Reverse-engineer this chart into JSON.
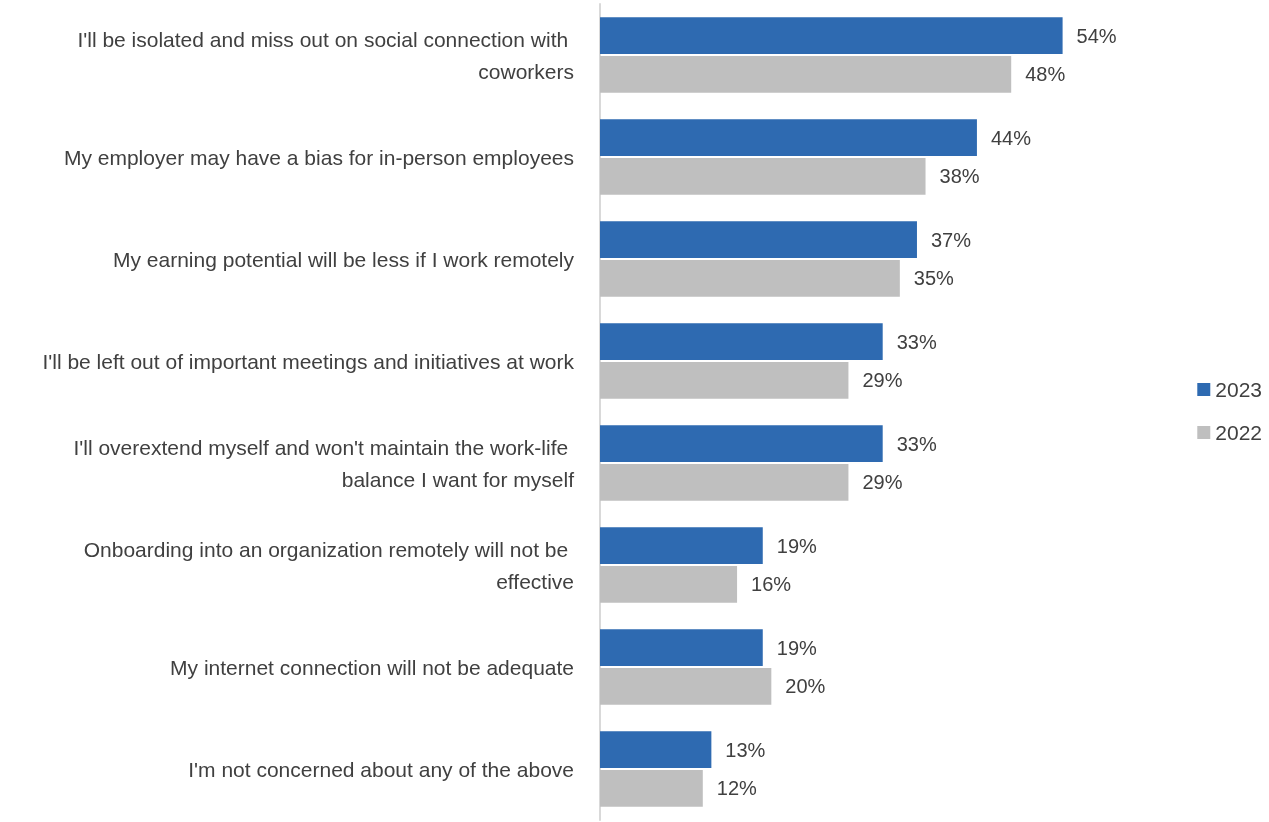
{
  "chart_data": {
    "type": "bar",
    "orientation": "horizontal",
    "categories": [
      "I'll be isolated and miss out on social connection with coworkers",
      "My employer may have a bias for in-person employees",
      "My earning potential will be less if I work remotely",
      "I'll be left out of important meetings and initiatives at work",
      "I'll overextend myself and won't maintain the work-life balance I want for myself",
      "Onboarding into an organization remotely will not be effective",
      "My internet connection will not be adequate",
      "I'm not concerned about any of the above"
    ],
    "series": [
      {
        "name": "2023",
        "color": "#2e6ab1",
        "values": [
          54,
          44,
          37,
          33,
          33,
          19,
          19,
          13
        ],
        "value_labels": [
          "54%",
          "44%",
          "37%",
          "33%",
          "33%",
          "19%",
          "19%",
          "13%"
        ]
      },
      {
        "name": "2022",
        "color": "#bfbfbf",
        "values": [
          48,
          38,
          35,
          29,
          29,
          16,
          20,
          12
        ],
        "value_labels": [
          "48%",
          "38%",
          "35%",
          "29%",
          "29%",
          "16%",
          "20%",
          "12%"
        ]
      }
    ],
    "legend": "right"
  }
}
